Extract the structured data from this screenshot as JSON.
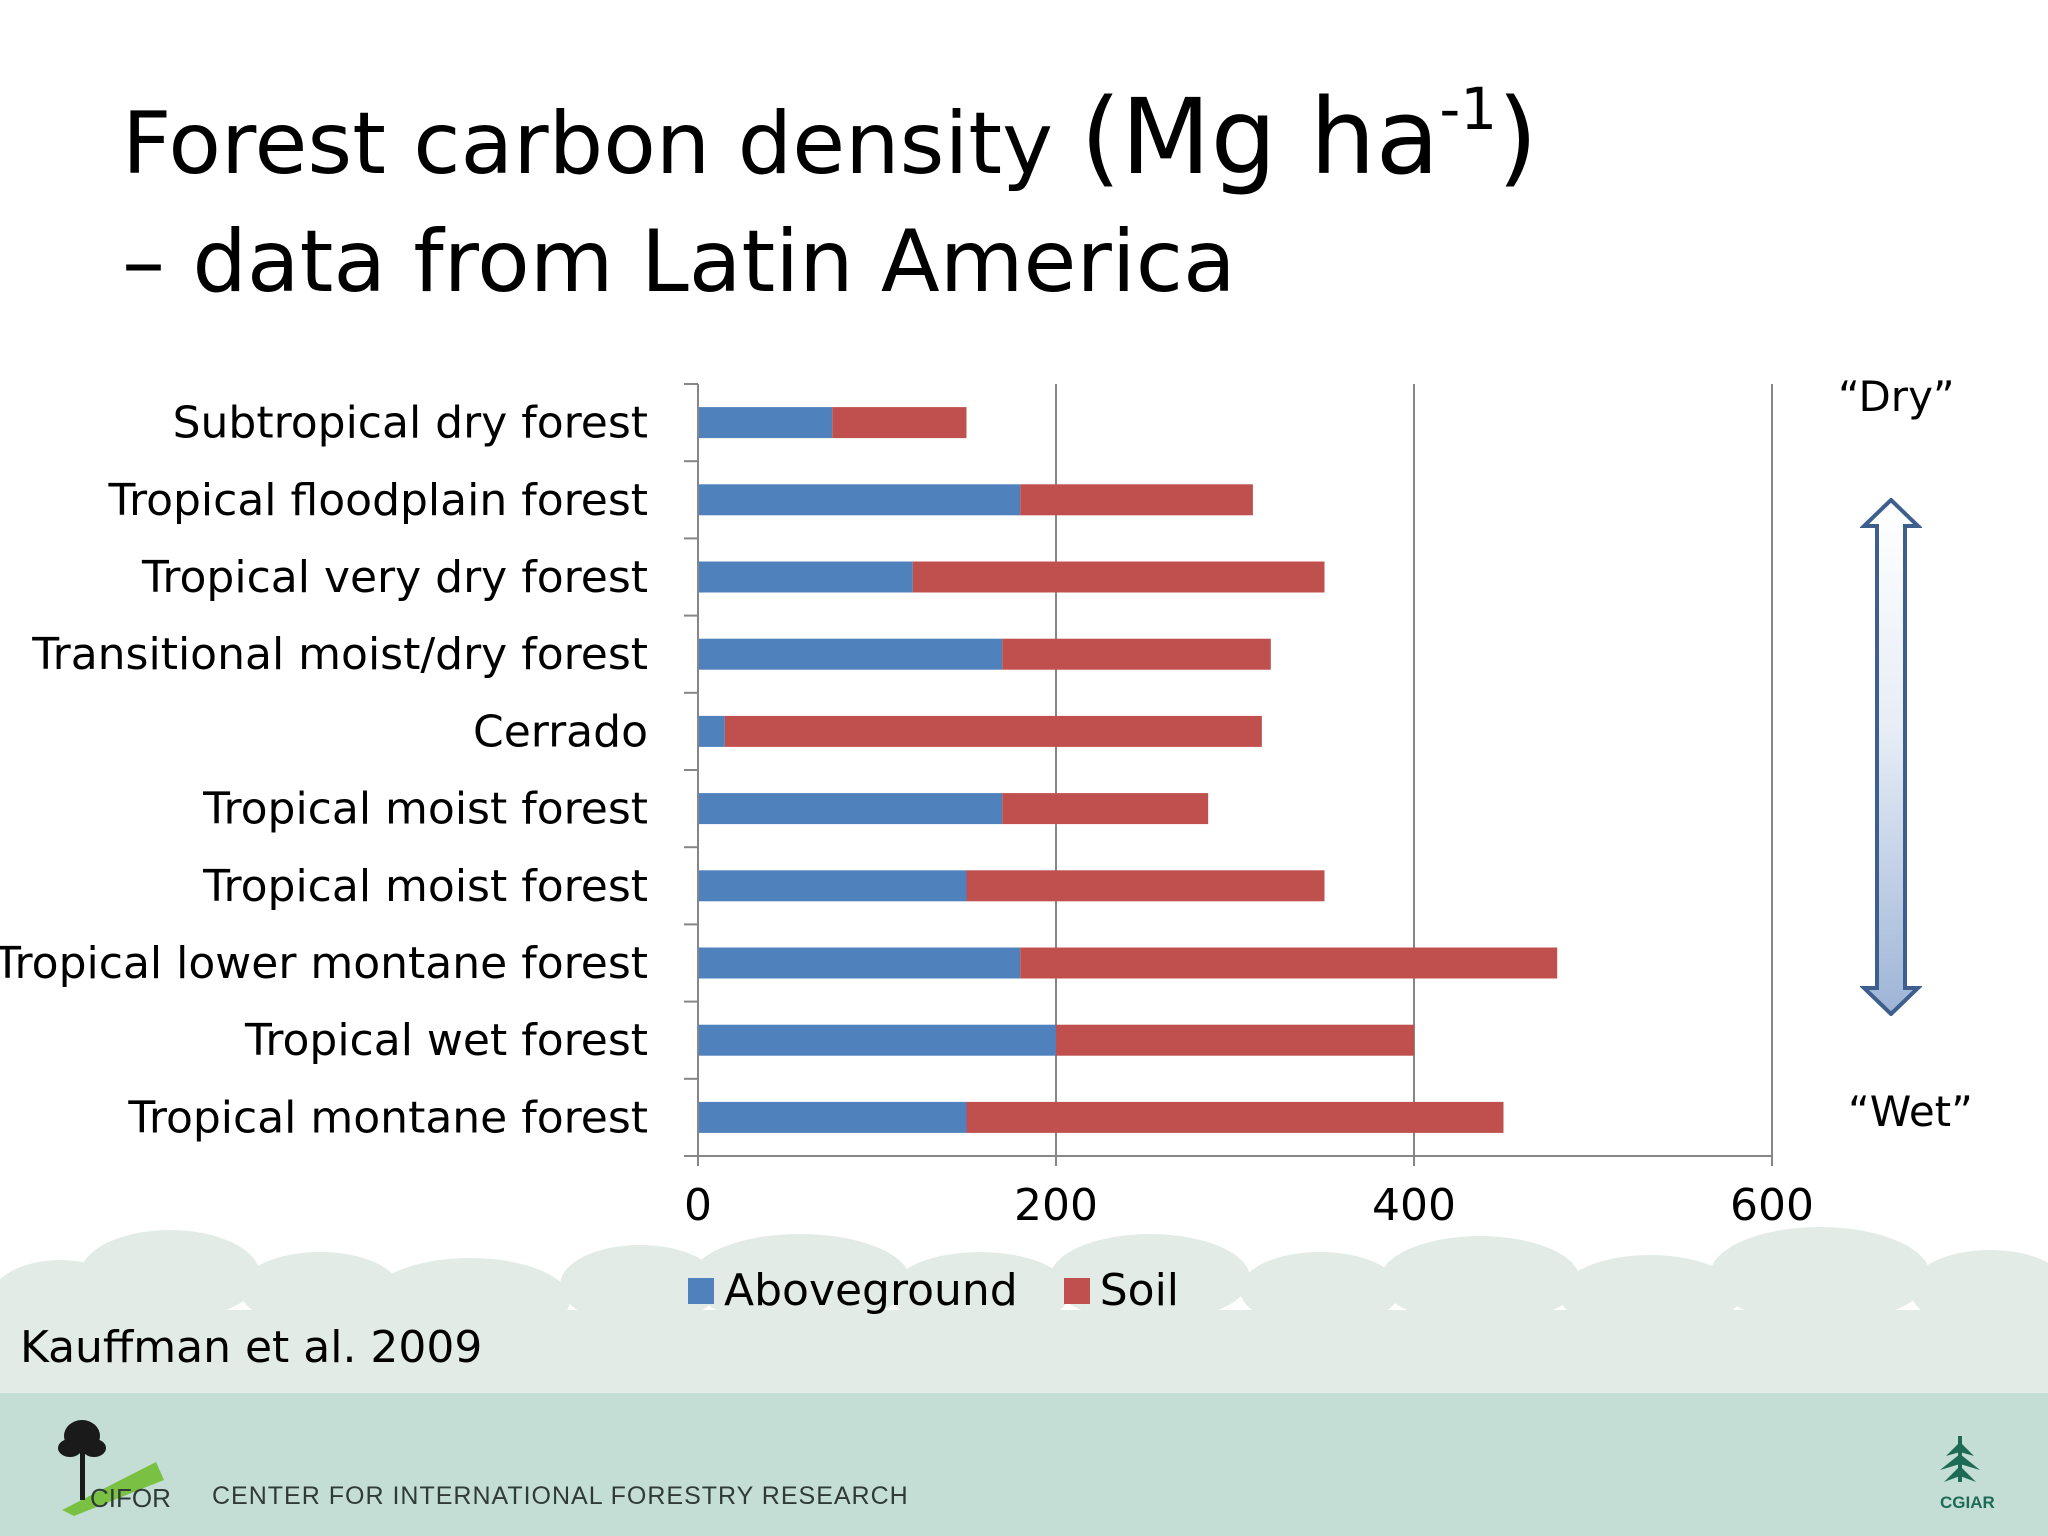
{
  "title": {
    "line1": "Forest carbon density ",
    "unit_open": "(Mg ha",
    "unit_sup": "-1",
    "unit_close": ")",
    "line2": "– data from Latin America"
  },
  "chart_data": {
    "type": "bar",
    "orientation": "horizontal",
    "stacked": true,
    "categories": [
      "Subtropical dry forest",
      "Tropical floodplain forest",
      "Tropical very dry forest",
      "Transitional moist/dry forest",
      "Cerrado",
      "Tropical moist forest",
      "Tropical moist forest",
      "Tropical lower montane forest",
      "Tropical wet forest",
      "Tropical montane forest"
    ],
    "series": [
      {
        "name": "Aboveground",
        "color": "#4f81bd",
        "values": [
          75,
          180,
          120,
          170,
          15,
          170,
          150,
          180,
          200,
          150
        ]
      },
      {
        "name": "Soil",
        "color": "#c0504d",
        "values": [
          75,
          130,
          230,
          150,
          300,
          115,
          200,
          300,
          200,
          300
        ]
      }
    ],
    "xlim": [
      0,
      600
    ],
    "xticks": [
      "0",
      "200",
      "400",
      "600"
    ],
    "grid": true,
    "legend": "bottom"
  },
  "gradient": {
    "top_label": "“Dry”",
    "bottom_label": "“Wet”"
  },
  "citation": "Kauffman et al. 2009",
  "footer": {
    "org_name": "CENTER FOR INTERNATIONAL FORESTRY RESEARCH",
    "left_logo_text": "CIFOR",
    "right_logo_text": "CGIAR"
  }
}
